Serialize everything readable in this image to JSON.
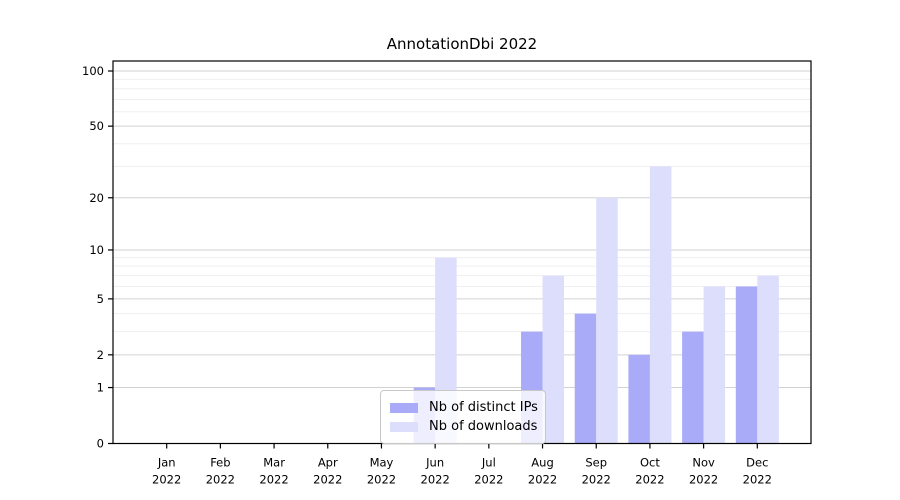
{
  "chart_data": {
    "type": "bar",
    "title": "AnnotationDbi 2022",
    "xlabel": "",
    "ylabel": "",
    "categories": [
      {
        "month": "Jan",
        "year": "2022"
      },
      {
        "month": "Feb",
        "year": "2022"
      },
      {
        "month": "Mar",
        "year": "2022"
      },
      {
        "month": "Apr",
        "year": "2022"
      },
      {
        "month": "May",
        "year": "2022"
      },
      {
        "month": "Jun",
        "year": "2022"
      },
      {
        "month": "Jul",
        "year": "2022"
      },
      {
        "month": "Aug",
        "year": "2022"
      },
      {
        "month": "Sep",
        "year": "2022"
      },
      {
        "month": "Oct",
        "year": "2022"
      },
      {
        "month": "Nov",
        "year": "2022"
      },
      {
        "month": "Dec",
        "year": "2022"
      }
    ],
    "series": [
      {
        "name": "Nb of distinct IPs",
        "color": "#a9abf8",
        "values": [
          0,
          0,
          0,
          0,
          0,
          1,
          0,
          3,
          4,
          2,
          3,
          6
        ]
      },
      {
        "name": "Nb of downloads",
        "color": "#dcdefb",
        "values": [
          0,
          0,
          0,
          0,
          0,
          9,
          0,
          7,
          20,
          30,
          6,
          7
        ]
      }
    ],
    "y_axis": {
      "scale": "log1p",
      "tick_labels": [
        "0",
        "1",
        "2",
        "5",
        "10",
        "20",
        "50",
        "100"
      ],
      "tick_values": [
        0,
        1,
        2,
        5,
        10,
        20,
        50,
        100
      ],
      "minor_gridline_values": [
        3,
        4,
        6,
        7,
        8,
        9,
        30,
        40,
        60,
        70,
        80,
        90
      ],
      "ylim": [
        0,
        114
      ]
    },
    "grid": true,
    "legend_position": "lower center"
  }
}
